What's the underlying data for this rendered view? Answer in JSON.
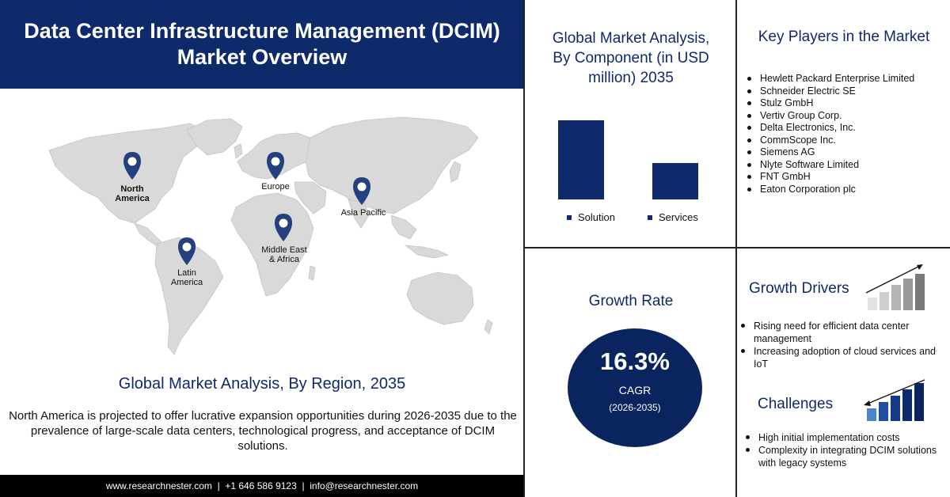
{
  "header": {
    "title_line1": "Data Center Infrastructure Management (DCIM)",
    "title_line2": "Market Overview"
  },
  "map": {
    "regions": [
      {
        "line1": "North",
        "line2": "America"
      },
      {
        "line1": "Europe",
        "line2": ""
      },
      {
        "line1": "Asia Pacific",
        "line2": ""
      },
      {
        "line1": "Middle East",
        "line2": "& Africa"
      },
      {
        "line1": "Latin",
        "line2": "America"
      }
    ],
    "pin_color": "#24407e"
  },
  "region_section": {
    "heading": "Global Market Analysis, By Region, 2035",
    "description": "North America is projected to offer lucrative expansion opportunities during 2026-2035 due to the prevalence of large-scale data centers, technological progress, and acceptance of DCIM solutions."
  },
  "footer": {
    "text": "www.researchnester.com  |  +1 646 586 9123  |  info@researchnester.com"
  },
  "component_section": {
    "title_line1": "Global Market Analysis,",
    "title_line2": "By Component (in USD",
    "title_line3": "million) 2035"
  },
  "chart_data": {
    "type": "bar",
    "categories": [
      "Solution",
      "Services"
    ],
    "values": [
      100,
      46
    ],
    "title": "Global Market Analysis, By Component (in USD million) 2035",
    "legend_position": "bottom",
    "grid": false,
    "bar_color": "#0f2a6b"
  },
  "key_players": {
    "title": "Key Players in the Market",
    "items": [
      "Hewlett Packard Enterprise Limited",
      "Schneider Electric SE",
      "Stulz GmbH",
      "Vertiv Group Corp.",
      "Delta Electronics, Inc.",
      "CommScope Inc.",
      "Siemens AG",
      "Nlyte Software Limited",
      "FNT GmbH",
      "Eaton Corporation plc"
    ]
  },
  "growth_rate": {
    "title": "Growth Rate",
    "value": "16.3%",
    "label": "CAGR",
    "period": "(2026-2035)"
  },
  "growth_drivers": {
    "title": "Growth Drivers",
    "items": [
      "Rising need for efficient  data center management",
      "Increasing adoption of cloud services and IoT"
    ]
  },
  "challenges": {
    "title": "Challenges",
    "items": [
      "High initial implementation costs",
      "Complexity in integrating DCIM solutions with legacy systems"
    ]
  },
  "colors": {
    "navy": "#0f2a6b",
    "map_gray": "#d6d6d6"
  }
}
